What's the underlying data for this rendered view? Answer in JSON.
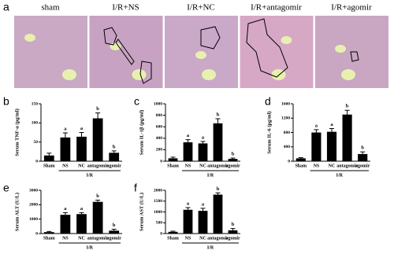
{
  "panel_a": {
    "label": "a",
    "images": [
      "sham",
      "I/R+NS",
      "I/R+NC",
      "I/R+antagomir",
      "I/R+agomir"
    ]
  },
  "chart_data": [
    {
      "type": "bar",
      "panel": "b",
      "ylabel": "Serum TNF-α (pg/ml)",
      "categories": [
        "Sham",
        "NS",
        "NC",
        "antagomir",
        "agomir"
      ],
      "group_label": "I/R",
      "values": [
        15,
        62,
        64,
        112,
        22
      ],
      "errors": [
        6,
        12,
        11,
        14,
        5
      ],
      "letters": [
        null,
        "a",
        "a",
        "b",
        "b"
      ],
      "color": "#000000",
      "ylim": [
        0,
        150
      ],
      "yticks": [
        0,
        50,
        100,
        150
      ]
    },
    {
      "type": "bar",
      "panel": "c",
      "ylabel": "Serum IL-1β (pg/ml)",
      "categories": [
        "Sham",
        "NS",
        "NC",
        "antagomir",
        "agomir"
      ],
      "group_label": "I/R",
      "values": [
        50,
        330,
        310,
        660,
        40
      ],
      "errors": [
        20,
        45,
        35,
        80,
        15
      ],
      "letters": [
        null,
        "a",
        "a",
        "b",
        "b"
      ],
      "color": "#000000",
      "ylim": [
        0,
        1000
      ],
      "yticks": [
        0,
        200,
        400,
        600,
        800,
        1000
      ]
    },
    {
      "type": "bar",
      "panel": "d",
      "ylabel": "Serum IL-6 (pg/ml)",
      "categories": [
        "Sham",
        "NS",
        "NC",
        "antagomir",
        "agomir"
      ],
      "group_label": "I/R",
      "values": [
        80,
        800,
        820,
        1300,
        200
      ],
      "errors": [
        20,
        80,
        90,
        120,
        60
      ],
      "letters": [
        null,
        "a",
        "a",
        "b",
        "b"
      ],
      "color": "#000000",
      "ylim": [
        0,
        1600
      ],
      "yticks": [
        0,
        400,
        800,
        1200,
        1600
      ]
    },
    {
      "type": "bar",
      "panel": "e",
      "ylabel": "Serum ALT (U/L)",
      "categories": [
        "Sham",
        "NS",
        "NC",
        "antagomir",
        "agomir"
      ],
      "group_label": "I/R",
      "values": [
        100,
        1300,
        1350,
        2200,
        200
      ],
      "errors": [
        40,
        150,
        100,
        120,
        100
      ],
      "letters": [
        null,
        "a",
        "a",
        "b",
        "b"
      ],
      "color": "#000000",
      "ylim": [
        0,
        3000
      ],
      "yticks": [
        0,
        1000,
        2000,
        3000
      ]
    },
    {
      "type": "bar",
      "panel": "f",
      "ylabel": "Serum AST (U/L)",
      "categories": [
        "Sham",
        "NS",
        "NC",
        "antagomir",
        "agomir"
      ],
      "group_label": "I/R",
      "values": [
        80,
        1100,
        1050,
        1800,
        150
      ],
      "errors": [
        30,
        100,
        120,
        80,
        80
      ],
      "letters": [
        null,
        "a",
        "a",
        "b",
        "b"
      ],
      "color": "#000000",
      "ylim": [
        0,
        2000
      ],
      "yticks": [
        0,
        500,
        1000,
        1500,
        2000
      ]
    }
  ]
}
